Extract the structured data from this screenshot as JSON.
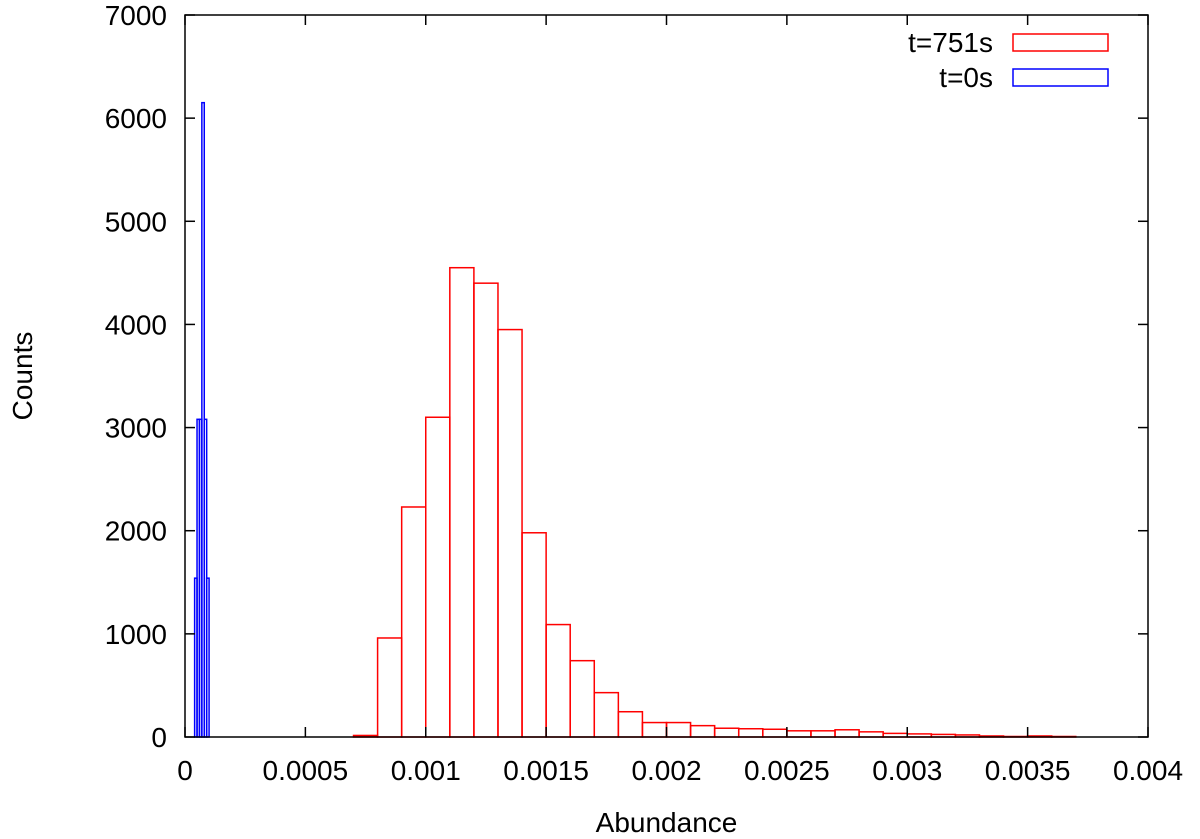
{
  "chart_data": {
    "type": "bar",
    "subtype": "histogram",
    "xlabel": "Abundance",
    "ylabel": "Counts",
    "xlim": [
      0,
      0.004
    ],
    "ylim": [
      0,
      7000
    ],
    "x_ticks": [
      "0",
      "0.0005",
      "0.001",
      "0.0015",
      "0.002",
      "0.0025",
      "0.003",
      "0.0035",
      "0.004"
    ],
    "y_ticks": [
      "0",
      "1000",
      "2000",
      "3000",
      "4000",
      "5000",
      "6000",
      "7000"
    ],
    "legend_position": "top-right",
    "grid": false,
    "series": [
      {
        "name": "t=751s",
        "color": "#ff0000",
        "bin_width": 0.0001,
        "bin_starts": [
          0.0007,
          0.0008,
          0.0009,
          0.001,
          0.0011,
          0.0012,
          0.0013,
          0.0014,
          0.0015,
          0.0016,
          0.0017,
          0.0018,
          0.0019,
          0.002,
          0.0021,
          0.0022,
          0.0023,
          0.0024,
          0.0025,
          0.0026,
          0.0027,
          0.0028,
          0.0029,
          0.003,
          0.0031,
          0.0032,
          0.0033,
          0.0034,
          0.0035,
          0.0036,
          0.0037,
          0.0038,
          0.0039
        ],
        "values": [
          15,
          960,
          2230,
          3100,
          4550,
          4400,
          3950,
          1980,
          1090,
          740,
          430,
          245,
          140,
          140,
          110,
          85,
          80,
          75,
          60,
          60,
          70,
          50,
          35,
          30,
          25,
          20,
          10,
          5,
          10,
          5,
          0,
          0,
          0
        ]
      },
      {
        "name": "t=0s",
        "color": "#0000ff",
        "bin_width": 1e-05,
        "bin_starts": [
          4e-05,
          5e-05,
          6e-05,
          7e-05,
          8e-05,
          9e-05
        ],
        "values": [
          1540,
          3080,
          3080,
          6150,
          3080,
          1540
        ]
      }
    ]
  }
}
